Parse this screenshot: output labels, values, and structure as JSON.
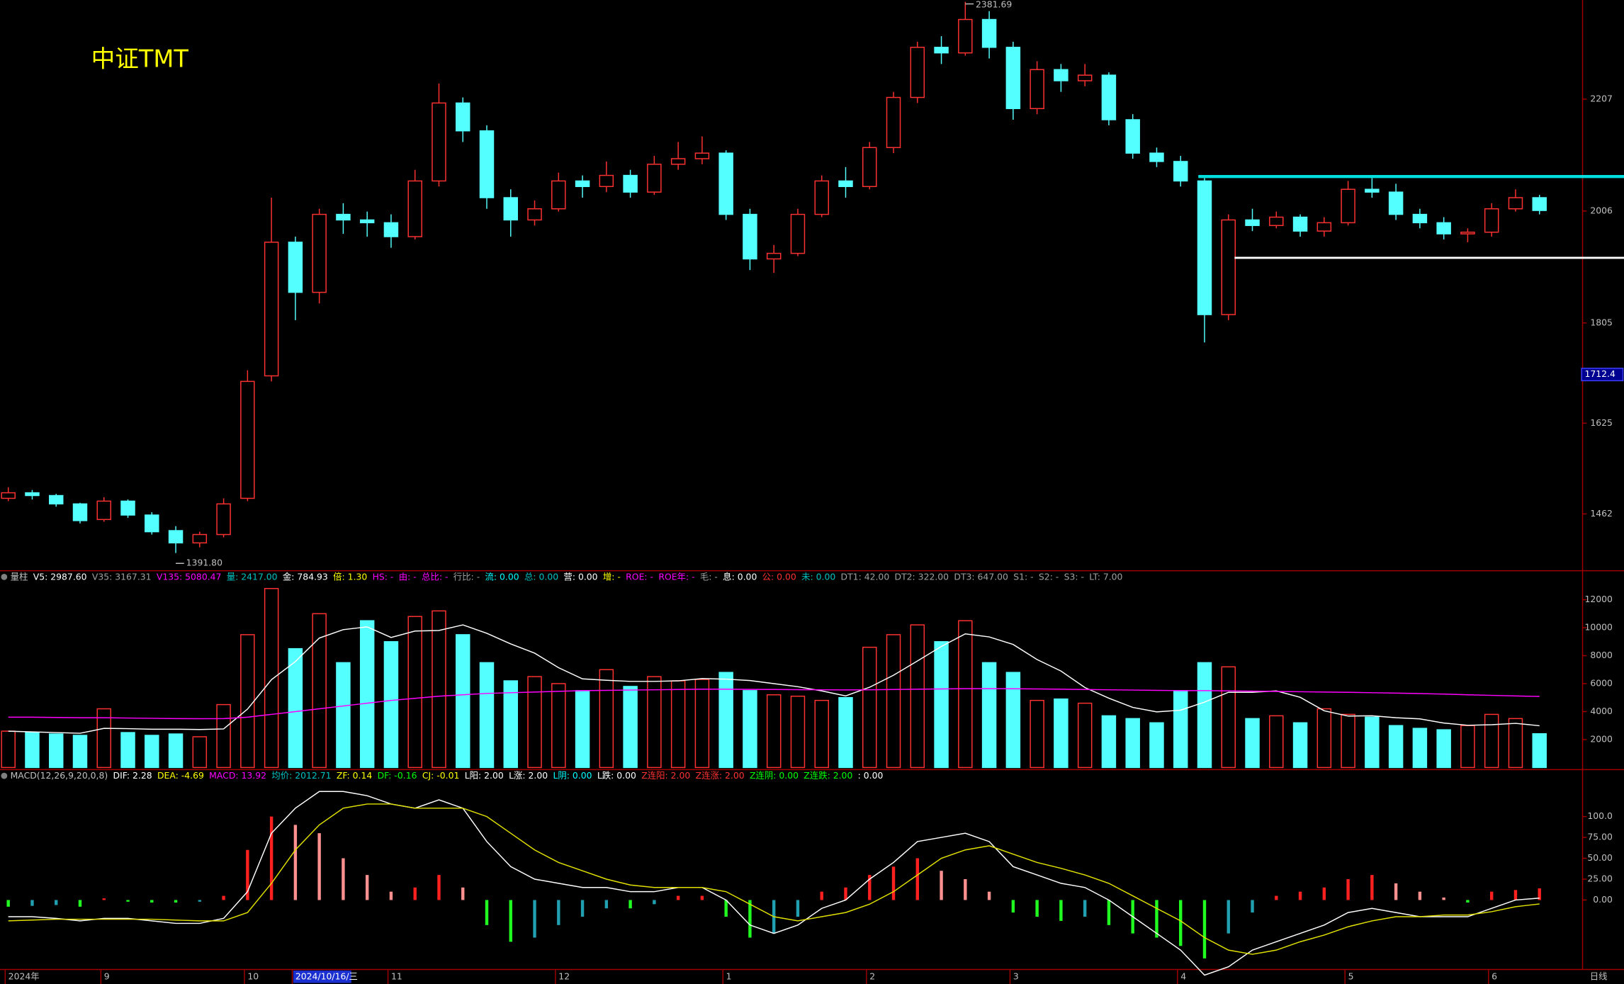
{
  "title": "中证TMT",
  "chart_data": [
    {
      "type": "candlestick",
      "categories": [
        "2024年",
        null,
        null,
        null,
        "9",
        null,
        null,
        null,
        null,
        null,
        "10",
        null,
        "2024/10/16/三",
        null,
        null,
        null,
        "11",
        null,
        null,
        null,
        null,
        null,
        null,
        "12",
        null,
        null,
        null,
        null,
        null,
        null,
        "1",
        null,
        null,
        null,
        null,
        null,
        "2",
        null,
        null,
        null,
        null,
        null,
        "3",
        null,
        null,
        null,
        null,
        null,
        null,
        "4",
        null,
        null,
        null,
        null,
        null,
        null,
        "5",
        null,
        null,
        null,
        null,
        null,
        "6",
        null,
        null
      ],
      "highlight_index": 12,
      "period": "日线",
      "ohlc": [
        [
          1490,
          1510,
          1485,
          1500
        ],
        [
          1500,
          1505,
          1488,
          1495
        ],
        [
          1495,
          1498,
          1475,
          1480
        ],
        [
          1480,
          1482,
          1445,
          1450
        ],
        [
          1452,
          1492,
          1448,
          1485
        ],
        [
          1485,
          1488,
          1455,
          1460
        ],
        [
          1460,
          1465,
          1425,
          1430
        ],
        [
          1432,
          1440,
          1391.8,
          1410
        ],
        [
          1410,
          1430,
          1402,
          1425
        ],
        [
          1425,
          1490,
          1420,
          1480
        ],
        [
          1490,
          1720,
          1485,
          1700
        ],
        [
          1710,
          2030,
          1700,
          1950
        ],
        [
          1950,
          1960,
          1810,
          1860
        ],
        [
          1860,
          2010,
          1840,
          2000
        ],
        [
          2000,
          2020,
          1965,
          1990
        ],
        [
          1990,
          2005,
          1960,
          1985
        ],
        [
          1985,
          2000,
          1940,
          1960
        ],
        [
          1960,
          2080,
          1955,
          2060
        ],
        [
          2060,
          2235,
          2050,
          2200
        ],
        [
          2200,
          2210,
          2130,
          2150
        ],
        [
          2150,
          2160,
          2010,
          2030
        ],
        [
          2030,
          2045,
          1960,
          1990
        ],
        [
          1990,
          2025,
          1980,
          2010
        ],
        [
          2010,
          2075,
          2005,
          2060
        ],
        [
          2060,
          2070,
          2030,
          2050
        ],
        [
          2050,
          2095,
          2040,
          2070
        ],
        [
          2070,
          2080,
          2030,
          2040
        ],
        [
          2040,
          2105,
          2035,
          2090
        ],
        [
          2090,
          2130,
          2080,
          2100
        ],
        [
          2100,
          2140,
          2090,
          2110
        ],
        [
          2110,
          2115,
          1990,
          2000
        ],
        [
          2000,
          2010,
          1900,
          1920
        ],
        [
          1920,
          1945,
          1895,
          1930
        ],
        [
          1930,
          2010,
          1925,
          2000
        ],
        [
          2000,
          2070,
          1995,
          2060
        ],
        [
          2060,
          2085,
          2030,
          2050
        ],
        [
          2050,
          2130,
          2045,
          2120
        ],
        [
          2120,
          2220,
          2110,
          2210
        ],
        [
          2210,
          2310,
          2200,
          2300
        ],
        [
          2300,
          2320,
          2270,
          2290
        ],
        [
          2290,
          2381.69,
          2285,
          2350
        ],
        [
          2350,
          2365,
          2280,
          2300
        ],
        [
          2300,
          2310,
          2170,
          2190
        ],
        [
          2190,
          2275,
          2180,
          2260
        ],
        [
          2260,
          2270,
          2220,
          2240
        ],
        [
          2240,
          2270,
          2230,
          2250
        ],
        [
          2250,
          2255,
          2160,
          2170
        ],
        [
          2170,
          2180,
          2100,
          2110
        ],
        [
          2110,
          2120,
          2085,
          2095
        ],
        [
          2095,
          2105,
          2050,
          2060
        ],
        [
          2060,
          2065,
          1770,
          1820
        ],
        [
          1820,
          2000,
          1810,
          1990
        ],
        [
          1990,
          2010,
          1970,
          1980
        ],
        [
          1980,
          2005,
          1975,
          1995
        ],
        [
          1995,
          2000,
          1960,
          1970
        ],
        [
          1970,
          1995,
          1960,
          1985
        ],
        [
          1985,
          2060,
          1980,
          2045
        ],
        [
          2045,
          2065,
          2030,
          2040
        ],
        [
          2040,
          2055,
          1990,
          2000
        ],
        [
          2000,
          2010,
          1975,
          1985
        ],
        [
          1985,
          1995,
          1955,
          1965
        ],
        [
          1965,
          1975,
          1950,
          1968
        ],
        [
          1968,
          2020,
          1960,
          2010
        ],
        [
          2010,
          2045,
          2005,
          2030
        ],
        [
          2030,
          2035,
          2000,
          2007
        ]
      ],
      "up_color": "#ff3232",
      "down_color": "#54ffff",
      "ylim": [
        1360,
        2385
      ],
      "yticks": [
        1462,
        1625,
        1805,
        2006,
        2207
      ],
      "levels": [
        {
          "value": 2068,
          "color": "#00dede"
        },
        {
          "value": 1922,
          "color": "#ffffff"
        }
      ],
      "cursor_price": 1712.4,
      "high_label": 2381.69,
      "low_label": {
        "value": 1391.8,
        "label": "1391.80"
      }
    },
    {
      "type": "volume",
      "header": [
        {
          "text": "量柱",
          "color": "#c0c0c0"
        },
        {
          "text": "V5: 2987.60",
          "color": "#ffffff"
        },
        {
          "text": "V35: 3167.31",
          "color": "#a0a0a0"
        },
        {
          "text": "V135: 5080.47",
          "color": "#ff00ff"
        },
        {
          "text": "量: 2417.00",
          "color": "#00c0c0"
        },
        {
          "text": "金: 784.93",
          "color": "#ffffff"
        },
        {
          "text": "倍: 1.30",
          "color": "#ffff00"
        },
        {
          "text": "HS: -",
          "color": "#ff00ff"
        },
        {
          "text": "由: -",
          "color": "#ff00ff"
        },
        {
          "text": "总比: -",
          "color": "#ff00ff"
        },
        {
          "text": "行比: -",
          "color": "#a0a0a0"
        },
        {
          "text": "流: 0.00",
          "color": "#00ffff"
        },
        {
          "text": "总: 0.00",
          "color": "#00c0c0"
        },
        {
          "text": "营: 0.00",
          "color": "#ffffff"
        },
        {
          "text": "增: -",
          "color": "#ffff00"
        },
        {
          "text": "ROE: -",
          "color": "#ff00ff"
        },
        {
          "text": "ROE年: -",
          "color": "#ff00ff"
        },
        {
          "text": "毛: -",
          "color": "#a0a0a0"
        },
        {
          "text": "息: 0.00",
          "color": "#ffffff"
        },
        {
          "text": "公: 0.00",
          "color": "#ff3232"
        },
        {
          "text": "未: 0.00",
          "color": "#00c0c0"
        },
        {
          "text": "DT1: 42.00",
          "color": "#a0a0a0"
        },
        {
          "text": "DT2: 322.00",
          "color": "#a0a0a0"
        },
        {
          "text": "DT3: 647.00",
          "color": "#a0a0a0"
        },
        {
          "text": "S1: -",
          "color": "#a0a0a0"
        },
        {
          "text": "S2: -",
          "color": "#a0a0a0"
        },
        {
          "text": "S3: -",
          "color": "#a0a0a0"
        },
        {
          "text": "LT: 7.00",
          "color": "#a0a0a0"
        }
      ],
      "values": [
        2600,
        2500,
        2400,
        2300,
        4200,
        2500,
        2300,
        2400,
        2200,
        4500,
        9500,
        12800,
        8500,
        11000,
        7500,
        10500,
        9000,
        10800,
        11200,
        9500,
        7500,
        6200,
        6500,
        6000,
        5500,
        7000,
        5800,
        6500,
        6200,
        6300,
        6800,
        5500,
        5200,
        5100,
        4800,
        5000,
        8600,
        9500,
        10200,
        9000,
        10500,
        7500,
        6800,
        4800,
        4900,
        4600,
        3700,
        3500,
        3200,
        5500,
        7500,
        7200,
        3500,
        3700,
        3200,
        4200,
        3800,
        3600,
        3000,
        2800,
        2700,
        3000,
        3800,
        3500,
        2417
      ],
      "lines": [
        {
          "color": "#ffffff",
          "values": [
            2600,
            2550,
            2500,
            2450,
            2800,
            2780,
            2740,
            2740,
            2720,
            2760,
            4180,
            6280,
            7580,
            9260,
            9860,
            10060,
            9300,
            9760,
            9800,
            10200,
            9600,
            8840,
            8180,
            7140,
            6340,
            6240,
            6160,
            6160,
            6200,
            6360,
            6320,
            6220,
            6000,
            5780,
            5480,
            5120,
            5740,
            6600,
            7620,
            8660,
            9560,
            9340,
            8800,
            7720,
            6900,
            5720,
            4960,
            4300,
            3980,
            4100,
            4680,
            5380,
            5380,
            5480,
            5020,
            4060,
            3680,
            3700,
            3560,
            3480,
            3180,
            3020,
            3060,
            3160,
            2987.6
          ]
        },
        {
          "color": "#ff00ff",
          "values": [
            3600,
            3600,
            3580,
            3560,
            3560,
            3540,
            3520,
            3500,
            3490,
            3500,
            3600,
            3800,
            4000,
            4200,
            4400,
            4600,
            4800,
            4950,
            5100,
            5200,
            5300,
            5350,
            5400,
            5450,
            5500,
            5520,
            5540,
            5560,
            5580,
            5600,
            5600,
            5590,
            5580,
            5570,
            5560,
            5550,
            5560,
            5580,
            5600,
            5620,
            5640,
            5640,
            5630,
            5620,
            5600,
            5580,
            5560,
            5540,
            5520,
            5500,
            5500,
            5480,
            5460,
            5440,
            5420,
            5400,
            5380,
            5350,
            5320,
            5290,
            5250,
            5200,
            5160,
            5120,
            5080.47
          ]
        }
      ],
      "up_color": "#ff3232",
      "down_color": "#54ffff",
      "ylim": [
        0,
        14000
      ],
      "yticks": [
        2000,
        4000,
        6000,
        8000,
        10000,
        12000
      ]
    },
    {
      "type": "macd",
      "header": [
        {
          "text": "MACD(12,26,9,20,0,8)",
          "color": "#c0c0c0"
        },
        {
          "text": "DIF: 2.28",
          "color": "#ffffff"
        },
        {
          "text": "DEA: -4.69",
          "color": "#ffff00"
        },
        {
          "text": "MACD: 13.92",
          "color": "#ff00ff"
        },
        {
          "text": "均价: 2012.71",
          "color": "#00c0c0"
        },
        {
          "text": "ZF: 0.14",
          "color": "#ffff00"
        },
        {
          "text": "DF: -0.16",
          "color": "#00ff00"
        },
        {
          "text": "CJ: -0.01",
          "color": "#ffff00"
        },
        {
          "text": "L阳: 2.00",
          "color": "#ffffff"
        },
        {
          "text": "L涨: 2.00",
          "color": "#ffffff"
        },
        {
          "text": "L阴: 0.00",
          "color": "#00ffff"
        },
        {
          "text": "L跌: 0.00",
          "color": "#ffffff"
        },
        {
          "text": "Z连阳: 2.00",
          "color": "#ff3232"
        },
        {
          "text": "Z连涨: 2.00",
          "color": "#ff3232"
        },
        {
          "text": "Z连阴: 0.00",
          "color": "#00ff00"
        },
        {
          "text": "Z连跌: 2.00",
          "color": "#00ff00"
        },
        {
          "text": ": 0.00",
          "color": "#ffffff"
        }
      ],
      "values": [
        -8,
        -7,
        -6,
        -8,
        2,
        -2,
        -3,
        -3,
        -2,
        5,
        60,
        100,
        90,
        80,
        50,
        30,
        10,
        15,
        30,
        15,
        -30,
        -50,
        -45,
        -30,
        -20,
        -10,
        -10,
        -5,
        5,
        5,
        -20,
        -45,
        -40,
        -20,
        10,
        15,
        30,
        40,
        50,
        35,
        25,
        10,
        -15,
        -20,
        -25,
        -20,
        -30,
        -40,
        -45,
        -55,
        -70,
        -40,
        -15,
        5,
        10,
        15,
        25,
        30,
        20,
        10,
        3,
        -3,
        10,
        12,
        13.92
      ],
      "series": [
        {
          "color": "#ffffff",
          "values": [
            -20,
            -20,
            -22,
            -25,
            -22,
            -22,
            -25,
            -28,
            -28,
            -22,
            10,
            80,
            110,
            130,
            130,
            125,
            115,
            110,
            120,
            110,
            70,
            40,
            25,
            20,
            15,
            15,
            10,
            10,
            15,
            15,
            0,
            -30,
            -40,
            -30,
            -10,
            0,
            25,
            45,
            70,
            75,
            80,
            70,
            40,
            30,
            20,
            15,
            0,
            -20,
            -40,
            -60,
            -90,
            -80,
            -60,
            -50,
            -40,
            -30,
            -15,
            -10,
            -15,
            -20,
            -20,
            -20,
            -10,
            0,
            2.28
          ]
        },
        {
          "color": "#e0e000",
          "values": [
            -25,
            -24,
            -23,
            -23,
            -23,
            -23,
            -23,
            -24,
            -25,
            -25,
            -15,
            20,
            60,
            90,
            110,
            115,
            115,
            110,
            110,
            110,
            100,
            80,
            60,
            45,
            35,
            25,
            18,
            15,
            15,
            15,
            10,
            -5,
            -20,
            -25,
            -20,
            -15,
            -5,
            10,
            30,
            50,
            60,
            65,
            55,
            45,
            38,
            30,
            20,
            5,
            -10,
            -25,
            -45,
            -60,
            -65,
            -60,
            -50,
            -42,
            -32,
            -25,
            -20,
            -20,
            -18,
            -18,
            -14,
            -8,
            -4.69
          ]
        }
      ],
      "up_color": "#ff2020",
      "up_fade_color": "#ff9090",
      "down_color": "#20ff20",
      "down_fade_color": "#20a0b0",
      "ylim": [
        -82,
        155
      ],
      "yticks": [
        {
          "value": 0,
          "label": "0.00"
        },
        {
          "value": 25,
          "label": "25.00"
        },
        {
          "value": 50,
          "label": "50.00"
        },
        {
          "value": 75,
          "label": "75.00"
        },
        {
          "value": 100,
          "label": "100.0"
        }
      ]
    }
  ]
}
